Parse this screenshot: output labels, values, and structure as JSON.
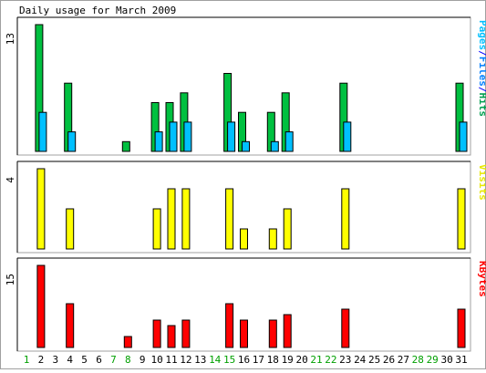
{
  "chart_data": {
    "type": "bar",
    "title": "Daily usage for March 2009",
    "categories": [
      "1",
      "2",
      "3",
      "4",
      "5",
      "6",
      "7",
      "8",
      "9",
      "10",
      "11",
      "12",
      "13",
      "14",
      "15",
      "16",
      "17",
      "18",
      "19",
      "20",
      "21",
      "22",
      "23",
      "24",
      "25",
      "26",
      "27",
      "28",
      "29",
      "30",
      "31"
    ],
    "weekend_days": [
      "1",
      "7",
      "8",
      "14",
      "15",
      "21",
      "22",
      "28",
      "29"
    ],
    "panels": [
      {
        "name": "pages-files-hits",
        "ymax": 13,
        "ymax_label": "13",
        "legend": [
          {
            "label": "Pages",
            "color": "#00c0ff"
          },
          {
            "label": "/",
            "color": "#0000ff"
          },
          {
            "label": "Files",
            "color": "#0080ff"
          },
          {
            "label": "/",
            "color": "#0000ff"
          },
          {
            "label": "Hits",
            "color": "#00a050"
          }
        ],
        "series": [
          {
            "name": "Hits",
            "color": "#00c040",
            "values": [
              0,
              13,
              0,
              7,
              0,
              0,
              0,
              1,
              0,
              5,
              5,
              6,
              0,
              0,
              8,
              4,
              0,
              4,
              6,
              0,
              0,
              0,
              7,
              0,
              0,
              0,
              0,
              0,
              0,
              0,
              7
            ]
          },
          {
            "name": "Files",
            "color": "#00c0ff",
            "values": [
              0,
              4,
              0,
              2,
              0,
              0,
              0,
              0,
              0,
              2,
              3,
              3,
              0,
              0,
              3,
              1,
              0,
              1,
              2,
              0,
              0,
              0,
              3,
              0,
              0,
              0,
              0,
              0,
              0,
              0,
              3
            ]
          }
        ]
      },
      {
        "name": "visits",
        "ymax": 4,
        "ymax_label": "4",
        "legend": [
          {
            "label": "Visits",
            "color": "#e8e800"
          }
        ],
        "series": [
          {
            "name": "Visits",
            "color": "#ffff00",
            "values": [
              0,
              4,
              0,
              2,
              0,
              0,
              0,
              0,
              0,
              2,
              3,
              3,
              0,
              0,
              3,
              1,
              0,
              1,
              2,
              0,
              0,
              0,
              3,
              0,
              0,
              0,
              0,
              0,
              0,
              0,
              3
            ]
          }
        ]
      },
      {
        "name": "kbytes",
        "ymax": 15,
        "ymax_label": "15",
        "legend": [
          {
            "label": "KBytes",
            "color": "#ff0000"
          }
        ],
        "series": [
          {
            "name": "KBytes",
            "color": "#ff0000",
            "values": [
              0,
              15,
              0,
              8,
              0,
              0,
              0,
              2,
              0,
              5,
              4,
              5,
              0,
              0,
              8,
              5,
              0,
              5,
              6,
              0,
              0,
              0,
              7,
              0,
              0,
              0,
              0,
              0,
              0,
              0,
              7
            ]
          }
        ]
      }
    ]
  },
  "colors": {
    "weekday_label": "#000000",
    "weekend_label": "#00a000",
    "frame_dark": "#000000",
    "frame_light": "#a0a0a0",
    "grid_bg": "#ffffff"
  }
}
